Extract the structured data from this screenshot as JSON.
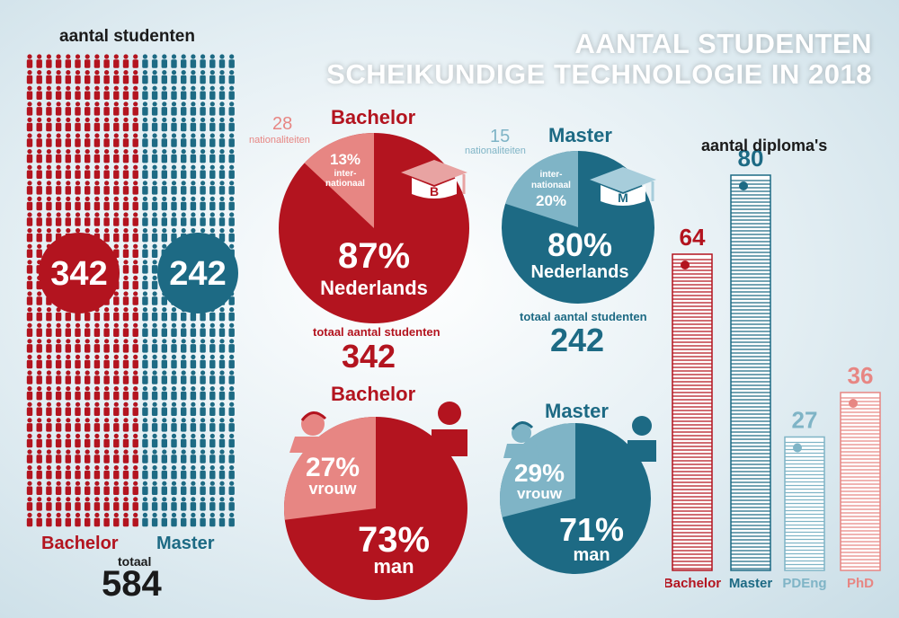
{
  "title": {
    "line1": "AANTAL STUDENTEN",
    "line2": "SCHEIKUNDIGE TECHNOLOGIE IN 2018"
  },
  "colors": {
    "bachelor": "#b3141f",
    "bachelor_light": "#e78683",
    "master": "#1d6a84",
    "master_light": "#7fb4c6"
  },
  "students": {
    "heading": "aantal studenten",
    "bachelor_count": "342",
    "master_count": "242",
    "bachelor_label": "Bachelor",
    "master_label": "Master",
    "total_label": "totaal",
    "total_value": "584"
  },
  "bachelor_nat": {
    "heading": "Bachelor",
    "nationalities_count": "28",
    "nationalities_label": "nationaliteiten",
    "intl_pct": "13%",
    "intl_line1": "inter-",
    "intl_line2": "nationaal",
    "dutch_pct": "87%",
    "dutch_label": "Nederlands",
    "cap_letter": "B",
    "total_label": "totaal aantal studenten",
    "total_value": "342"
  },
  "master_nat": {
    "heading": "Master",
    "nationalities_count": "15",
    "nationalities_label": "nationaliteiten",
    "intl_pct": "20%",
    "intl_line1": "inter-",
    "intl_line2": "nationaal",
    "dutch_pct": "80%",
    "dutch_label": "Nederlands",
    "cap_letter": "M",
    "total_label": "totaal aantal studenten",
    "total_value": "242"
  },
  "bachelor_gender": {
    "heading": "Bachelor",
    "women_pct": "27%",
    "women_label": "vrouw",
    "men_pct": "73%",
    "men_label": "man"
  },
  "master_gender": {
    "heading": "Master",
    "women_pct": "29%",
    "women_label": "vrouw",
    "men_pct": "71%",
    "men_label": "man"
  },
  "chart_data": [
    {
      "type": "pie",
      "title": "Bachelor",
      "categories": [
        "Nederlands",
        "internationaal"
      ],
      "values": [
        87,
        13
      ],
      "colors": [
        "#b3141f",
        "#e78683"
      ]
    },
    {
      "type": "pie",
      "title": "Master",
      "categories": [
        "Nederlands",
        "internationaal"
      ],
      "values": [
        80,
        20
      ],
      "colors": [
        "#1d6a84",
        "#7fb4c6"
      ]
    },
    {
      "type": "pie",
      "title": "Bachelor",
      "categories": [
        "man",
        "vrouw"
      ],
      "values": [
        73,
        27
      ],
      "colors": [
        "#b3141f",
        "#e78683"
      ]
    },
    {
      "type": "pie",
      "title": "Master",
      "categories": [
        "man",
        "vrouw"
      ],
      "values": [
        71,
        29
      ],
      "colors": [
        "#1d6a84",
        "#7fb4c6"
      ]
    },
    {
      "type": "bar",
      "title": "aantal diploma's",
      "categories": [
        "Bachelor",
        "Master",
        "PDEng",
        "PhD"
      ],
      "values": [
        64,
        80,
        27,
        36
      ],
      "colors": [
        "#b3141f",
        "#1d6a84",
        "#7fb4c6",
        "#e78683"
      ]
    }
  ]
}
